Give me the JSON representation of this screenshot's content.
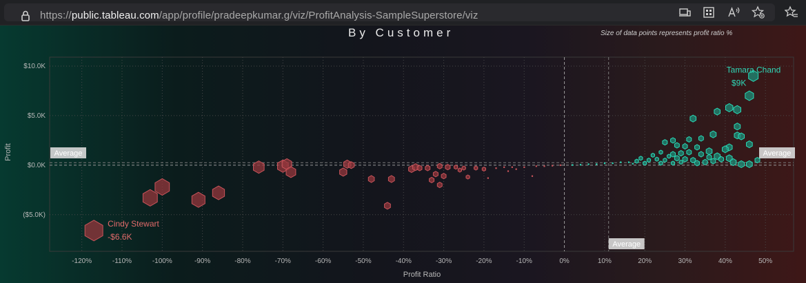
{
  "browser": {
    "url_prefix": "https://",
    "url_host": "public.tableau.com",
    "url_path": "/app/profile/pradeepkumar.g/viz/ProfitAnalysis-SampleSuperstore/viz",
    "icons": [
      "lock-icon",
      "devices-icon",
      "grid-icon",
      "read-aloud-icon",
      "favorite-add-icon",
      "favorites-icon"
    ]
  },
  "colors": {
    "negative": "#c9545a",
    "positive": "#28d9b6",
    "average_label_bg": "#e8e8e8"
  },
  "chart_data": {
    "type": "scatter",
    "title": "By Customer",
    "subtitle": "Size of data points represents profit ratio %",
    "xlabel": "Profit Ratio",
    "ylabel": "Profit",
    "x_ticks": [
      "-120%",
      "-110%",
      "-100%",
      "-90%",
      "-80%",
      "-70%",
      "-60%",
      "-50%",
      "-40%",
      "-30%",
      "-20%",
      "-10%",
      "0%",
      "10%",
      "20%",
      "30%",
      "40%",
      "50%"
    ],
    "y_ticks": [
      "$10.0K",
      "$5.0K",
      "$0.0K",
      "($5.0K)"
    ],
    "xlim": [
      -128,
      57
    ],
    "ylim": [
      -8.7,
      10.9
    ],
    "grid": true,
    "average_label": "Average",
    "average_x": 11,
    "average_y": 0.25,
    "annotations": [
      {
        "name": "Cindy Stewart",
        "value": "-$6.6K",
        "x": -117,
        "y": -6.6
      },
      {
        "name": "Tamara Chand",
        "value": "$9K",
        "x": 47,
        "y": 9.0
      }
    ],
    "series": [
      {
        "sign": "negative",
        "points": [
          {
            "x": -117,
            "y": -6.6,
            "s": 15
          },
          {
            "x": -103,
            "y": -3.3,
            "s": 12
          },
          {
            "x": -100,
            "y": -2.2,
            "s": 12
          },
          {
            "x": -91,
            "y": -3.5,
            "s": 11
          },
          {
            "x": -86,
            "y": -2.8,
            "s": 10
          },
          {
            "x": -76,
            "y": -0.2,
            "s": 9
          },
          {
            "x": -70,
            "y": -0.1,
            "s": 9
          },
          {
            "x": -69,
            "y": 0.1,
            "s": 8
          },
          {
            "x": -68,
            "y": -0.7,
            "s": 8
          },
          {
            "x": -55,
            "y": -0.7,
            "s": 6
          },
          {
            "x": -54,
            "y": 0.1,
            "s": 6
          },
          {
            "x": -53,
            "y": 0.0,
            "s": 5
          },
          {
            "x": -48,
            "y": -1.4,
            "s": 5
          },
          {
            "x": -44,
            "y": -4.1,
            "s": 5
          },
          {
            "x": -43,
            "y": -1.4,
            "s": 5
          },
          {
            "x": -38,
            "y": -0.4,
            "s": 5
          },
          {
            "x": -37,
            "y": -0.2,
            "s": 5
          },
          {
            "x": -36,
            "y": -0.3,
            "s": 4
          },
          {
            "x": -34,
            "y": -0.3,
            "s": 4
          },
          {
            "x": -33,
            "y": -1.5,
            "s": 4
          },
          {
            "x": -32,
            "y": -0.9,
            "s": 4
          },
          {
            "x": -31,
            "y": -2.0,
            "s": 4
          },
          {
            "x": -30,
            "y": -1.1,
            "s": 4
          },
          {
            "x": -31,
            "y": -0.1,
            "s": 4
          },
          {
            "x": -29,
            "y": -0.2,
            "s": 4
          },
          {
            "x": -27,
            "y": -0.2,
            "s": 3
          },
          {
            "x": -26,
            "y": -0.5,
            "s": 3
          },
          {
            "x": -25,
            "y": -0.3,
            "s": 3
          },
          {
            "x": -24,
            "y": -1.2,
            "s": 3
          },
          {
            "x": -22,
            "y": -0.3,
            "s": 3
          },
          {
            "x": -20,
            "y": -0.4,
            "s": 3
          },
          {
            "x": -19,
            "y": -1.3,
            "s": 2
          },
          {
            "x": -17,
            "y": -0.3,
            "s": 2
          },
          {
            "x": -15,
            "y": -0.2,
            "s": 2
          },
          {
            "x": -14,
            "y": -0.6,
            "s": 2
          },
          {
            "x": -13,
            "y": -0.2,
            "s": 2
          },
          {
            "x": -12,
            "y": -0.4,
            "s": 2
          },
          {
            "x": -10,
            "y": -0.2,
            "s": 2
          },
          {
            "x": -8,
            "y": -1.1,
            "s": 2
          },
          {
            "x": -7,
            "y": -0.1,
            "s": 2
          },
          {
            "x": -5,
            "y": -0.1,
            "s": 2
          },
          {
            "x": -3,
            "y": -0.05,
            "s": 2
          },
          {
            "x": -1,
            "y": 0.0,
            "s": 2
          }
        ]
      },
      {
        "sign": "positive",
        "points": [
          {
            "x": 47,
            "y": 9.0,
            "s": 8
          },
          {
            "x": 46,
            "y": 7.0,
            "s": 7
          },
          {
            "x": 43,
            "y": 5.6,
            "s": 6
          },
          {
            "x": 41,
            "y": 5.8,
            "s": 6
          },
          {
            "x": 38,
            "y": 5.4,
            "s": 5
          },
          {
            "x": 32,
            "y": 4.7,
            "s": 5
          },
          {
            "x": 43,
            "y": 3.9,
            "s": 5
          },
          {
            "x": 43,
            "y": 3.0,
            "s": 5
          },
          {
            "x": 44,
            "y": 2.9,
            "s": 5
          },
          {
            "x": 37,
            "y": 3.1,
            "s": 5
          },
          {
            "x": 34,
            "y": 2.7,
            "s": 4
          },
          {
            "x": 31,
            "y": 2.6,
            "s": 4
          },
          {
            "x": 46,
            "y": 2.1,
            "s": 5
          },
          {
            "x": 41,
            "y": 1.8,
            "s": 5
          },
          {
            "x": 40,
            "y": 1.6,
            "s": 5
          },
          {
            "x": 41,
            "y": 0.7,
            "s": 5
          },
          {
            "x": 38,
            "y": 0.9,
            "s": 5
          },
          {
            "x": 36,
            "y": 1.4,
            "s": 5
          },
          {
            "x": 33,
            "y": 1.8,
            "s": 4
          },
          {
            "x": 30,
            "y": 1.9,
            "s": 4
          },
          {
            "x": 27,
            "y": 2.5,
            "s": 4
          },
          {
            "x": 25,
            "y": 2.3,
            "s": 4
          },
          {
            "x": 28,
            "y": 2.0,
            "s": 4
          },
          {
            "x": 44,
            "y": 0.1,
            "s": 5
          },
          {
            "x": 46,
            "y": 0.1,
            "s": 5
          },
          {
            "x": 48,
            "y": 0.5,
            "s": 4
          },
          {
            "x": 42,
            "y": 0.3,
            "s": 5
          },
          {
            "x": 39,
            "y": 0.6,
            "s": 4
          },
          {
            "x": 36,
            "y": 0.8,
            "s": 4
          },
          {
            "x": 34,
            "y": 1.1,
            "s": 4
          },
          {
            "x": 31,
            "y": 1.3,
            "s": 4
          },
          {
            "x": 29,
            "y": 1.2,
            "s": 4
          },
          {
            "x": 27,
            "y": 1.1,
            "s": 4
          },
          {
            "x": 24,
            "y": 1.3,
            "s": 3
          },
          {
            "x": 22,
            "y": 1.0,
            "s": 3
          },
          {
            "x": 32,
            "y": 0.5,
            "s": 4
          },
          {
            "x": 30,
            "y": 0.6,
            "s": 4
          },
          {
            "x": 28,
            "y": 0.7,
            "s": 4
          },
          {
            "x": 26,
            "y": 0.9,
            "s": 3
          },
          {
            "x": 25,
            "y": 0.5,
            "s": 3
          },
          {
            "x": 23,
            "y": 0.6,
            "s": 3
          },
          {
            "x": 21,
            "y": 0.5,
            "s": 3
          },
          {
            "x": 19,
            "y": 0.7,
            "s": 3
          },
          {
            "x": 18,
            "y": 0.4,
            "s": 3
          },
          {
            "x": 16,
            "y": 0.3,
            "s": 2
          },
          {
            "x": 14,
            "y": 0.3,
            "s": 2
          },
          {
            "x": 12,
            "y": 0.2,
            "s": 2
          },
          {
            "x": 10,
            "y": 0.2,
            "s": 2
          },
          {
            "x": 8,
            "y": 0.1,
            "s": 2
          },
          {
            "x": 6,
            "y": 0.1,
            "s": 2
          },
          {
            "x": 4,
            "y": 0.05,
            "s": 2
          },
          {
            "x": 2,
            "y": 0.02,
            "s": 2
          },
          {
            "x": 33,
            "y": 0.2,
            "s": 4
          },
          {
            "x": 35,
            "y": 0.3,
            "s": 4
          },
          {
            "x": 37,
            "y": 0.4,
            "s": 4
          },
          {
            "x": 29,
            "y": 0.3,
            "s": 3
          },
          {
            "x": 27,
            "y": 0.2,
            "s": 3
          },
          {
            "x": 24,
            "y": 0.2,
            "s": 3
          },
          {
            "x": 20,
            "y": 0.2,
            "s": 3
          },
          {
            "x": 17,
            "y": 0.15,
            "s": 2
          }
        ]
      }
    ]
  }
}
